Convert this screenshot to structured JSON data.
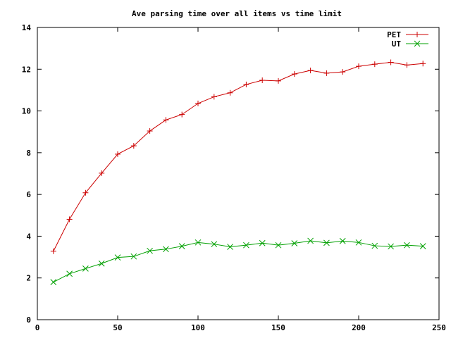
{
  "chart_data": {
    "type": "line",
    "title": "Ave parsing time over all items vs time limit",
    "xlabel": "",
    "ylabel": "",
    "xlim": [
      0,
      250
    ],
    "ylim": [
      0,
      14
    ],
    "xticks": [
      0,
      50,
      100,
      150,
      200,
      250
    ],
    "yticks": [
      0,
      2,
      4,
      6,
      8,
      10,
      12,
      14
    ],
    "grid": false,
    "legend_position": "top-right",
    "x": [
      10,
      20,
      30,
      40,
      50,
      60,
      70,
      80,
      90,
      100,
      110,
      120,
      130,
      140,
      150,
      160,
      170,
      180,
      190,
      200,
      210,
      220,
      230,
      240
    ],
    "series": [
      {
        "name": "PET",
        "color": "#cc0000",
        "marker": "plus",
        "values": [
          3.28,
          4.81,
          6.08,
          7.02,
          7.93,
          8.33,
          9.04,
          9.57,
          9.83,
          10.36,
          10.68,
          10.87,
          11.27,
          11.47,
          11.44,
          11.77,
          11.94,
          11.81,
          11.87,
          12.14,
          12.24,
          12.33,
          12.2,
          12.27
        ]
      },
      {
        "name": "UT",
        "color": "#00a000",
        "marker": "cross",
        "values": [
          1.8,
          2.2,
          2.45,
          2.69,
          2.98,
          3.03,
          3.3,
          3.38,
          3.52,
          3.7,
          3.62,
          3.49,
          3.57,
          3.67,
          3.57,
          3.66,
          3.78,
          3.68,
          3.77,
          3.7,
          3.54,
          3.51,
          3.57,
          3.52
        ]
      }
    ]
  }
}
